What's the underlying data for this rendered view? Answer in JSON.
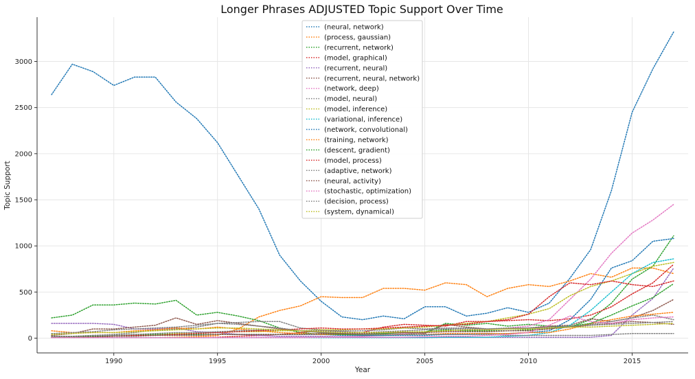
{
  "chart_data": {
    "type": "line",
    "title": "Longer Phrases ADJUSTED Topic Support Over Time",
    "xlabel": "Year",
    "ylabel": "Topic Support",
    "xlim": [
      1986.3,
      1990.0,
      2017.7
    ],
    "ylim": [
      -160,
      3480
    ],
    "xticks": [
      1990,
      1995,
      2000,
      2005,
      2010,
      2015
    ],
    "yticks": [
      0,
      500,
      1000,
      1500,
      2000,
      2500,
      3000
    ],
    "grid": true,
    "legend_position": "top-center",
    "line_style": "dotted",
    "x": [
      1987,
      1988,
      1989,
      1990,
      1991,
      1992,
      1993,
      1994,
      1995,
      1996,
      1997,
      1998,
      1999,
      2000,
      2001,
      2002,
      2003,
      2004,
      2005,
      2006,
      2007,
      2008,
      2009,
      2010,
      2011,
      2012,
      2013,
      2014,
      2015,
      2016,
      2017
    ],
    "series": [
      {
        "name": "(neural, network)",
        "color": "#1f77b4",
        "values": [
          2640,
          2970,
          2890,
          2740,
          2830,
          2830,
          2560,
          2380,
          2120,
          1760,
          1400,
          900,
          620,
          400,
          230,
          200,
          240,
          210,
          340,
          340,
          240,
          270,
          330,
          280,
          380,
          650,
          960,
          1600,
          2450,
          2920,
          3320
        ]
      },
      {
        "name": "(process, gaussian)",
        "color": "#ff7f0e",
        "values": [
          5,
          5,
          5,
          5,
          5,
          5,
          10,
          15,
          30,
          100,
          230,
          300,
          350,
          450,
          440,
          440,
          540,
          540,
          520,
          600,
          580,
          450,
          540,
          580,
          560,
          620,
          700,
          660,
          760,
          760,
          700
        ]
      },
      {
        "name": "(recurrent, network)",
        "color": "#2ca02c",
        "values": [
          220,
          250,
          360,
          360,
          380,
          370,
          410,
          250,
          280,
          240,
          190,
          110,
          60,
          40,
          40,
          30,
          30,
          40,
          60,
          160,
          140,
          160,
          130,
          150,
          130,
          120,
          200,
          380,
          640,
          780,
          1110
        ]
      },
      {
        "name": "(model, graphical)",
        "color": "#d62728",
        "values": [
          5,
          5,
          5,
          5,
          5,
          5,
          5,
          5,
          10,
          20,
          30,
          40,
          60,
          80,
          70,
          60,
          120,
          150,
          140,
          130,
          180,
          180,
          190,
          200,
          190,
          210,
          250,
          340,
          480,
          600,
          800
        ]
      },
      {
        "name": "(recurrent, neural)",
        "color": "#9467bd",
        "values": [
          160,
          160,
          160,
          150,
          100,
          100,
          110,
          70,
          60,
          40,
          30,
          20,
          20,
          20,
          15,
          10,
          10,
          10,
          10,
          10,
          10,
          10,
          10,
          10,
          10,
          10,
          10,
          30,
          250,
          430,
          760
        ]
      },
      {
        "name": "(recurrent, neural, network)",
        "color": "#8c564b",
        "values": [
          30,
          50,
          100,
          100,
          120,
          140,
          220,
          150,
          190,
          160,
          130,
          100,
          80,
          60,
          50,
          40,
          50,
          60,
          50,
          150,
          120,
          100,
          100,
          110,
          130,
          140,
          210,
          180,
          220,
          300,
          420
        ]
      },
      {
        "name": "(network, deep)",
        "color": "#e377c2",
        "values": [
          5,
          5,
          5,
          5,
          5,
          5,
          5,
          5,
          5,
          5,
          10,
          10,
          10,
          10,
          15,
          20,
          30,
          50,
          60,
          70,
          80,
          90,
          110,
          130,
          200,
          420,
          640,
          920,
          1140,
          1280,
          1450
        ]
      },
      {
        "name": "(model, neural)",
        "color": "#7f7f7f",
        "values": [
          20,
          20,
          30,
          40,
          60,
          90,
          100,
          120,
          160,
          170,
          180,
          180,
          110,
          90,
          80,
          80,
          90,
          110,
          100,
          110,
          110,
          100,
          100,
          110,
          110,
          120,
          150,
          180,
          220,
          250,
          200
        ]
      },
      {
        "name": "(model, inference)",
        "color": "#bcbd22",
        "values": [
          10,
          10,
          15,
          20,
          30,
          40,
          50,
          60,
          60,
          70,
          70,
          80,
          80,
          90,
          90,
          100,
          100,
          110,
          120,
          140,
          160,
          180,
          220,
          260,
          320,
          460,
          560,
          620,
          700,
          780,
          820
        ]
      },
      {
        "name": "(variational, inference)",
        "color": "#17becf",
        "values": [
          5,
          5,
          5,
          5,
          5,
          5,
          5,
          5,
          5,
          5,
          5,
          5,
          5,
          5,
          5,
          5,
          5,
          5,
          5,
          10,
          10,
          10,
          20,
          30,
          60,
          140,
          300,
          500,
          700,
          820,
          860
        ]
      },
      {
        "name": "(network, convolutional)",
        "color": "#1f77b4",
        "values": [
          10,
          15,
          20,
          20,
          25,
          30,
          40,
          40,
          40,
          40,
          40,
          40,
          40,
          40,
          30,
          30,
          30,
          30,
          30,
          40,
          40,
          50,
          50,
          60,
          80,
          200,
          420,
          760,
          840,
          1050,
          1080
        ]
      },
      {
        "name": "(training, network)",
        "color": "#ff7f0e",
        "values": [
          80,
          60,
          60,
          60,
          80,
          90,
          110,
          100,
          120,
          100,
          80,
          60,
          50,
          40,
          40,
          40,
          40,
          40,
          40,
          50,
          50,
          50,
          50,
          60,
          60,
          100,
          160,
          200,
          240,
          260,
          280
        ]
      },
      {
        "name": "(descent, gradient)",
        "color": "#2ca02c",
        "values": [
          20,
          20,
          20,
          30,
          40,
          40,
          40,
          40,
          40,
          40,
          40,
          40,
          40,
          50,
          40,
          40,
          50,
          60,
          70,
          90,
          80,
          80,
          80,
          90,
          100,
          130,
          160,
          250,
          350,
          440,
          590
        ]
      },
      {
        "name": "(model, process)",
        "color": "#d62728",
        "values": [
          10,
          10,
          10,
          20,
          30,
          30,
          40,
          50,
          60,
          70,
          80,
          90,
          100,
          110,
          100,
          100,
          110,
          120,
          130,
          140,
          150,
          180,
          200,
          260,
          450,
          600,
          580,
          620,
          580,
          560,
          620
        ]
      },
      {
        "name": "(adaptive, network)",
        "color": "#7f7f7f",
        "values": [
          50,
          60,
          70,
          90,
          100,
          110,
          120,
          140,
          160,
          150,
          130,
          110,
          80,
          60,
          50,
          40,
          40,
          40,
          40,
          40,
          40,
          40,
          30,
          30,
          30,
          30,
          30,
          40,
          50,
          50,
          50
        ]
      },
      {
        "name": "(neural, activity)",
        "color": "#8c564b",
        "values": [
          10,
          10,
          15,
          20,
          20,
          30,
          30,
          30,
          40,
          40,
          40,
          40,
          40,
          50,
          50,
          50,
          60,
          60,
          60,
          70,
          70,
          70,
          80,
          80,
          100,
          120,
          140,
          160,
          180,
          170,
          150
        ]
      },
      {
        "name": "(stochastic, optimization)",
        "color": "#e377c2",
        "values": [
          5,
          5,
          5,
          5,
          5,
          5,
          5,
          5,
          5,
          5,
          5,
          5,
          5,
          10,
          10,
          10,
          10,
          10,
          15,
          20,
          20,
          30,
          40,
          60,
          140,
          240,
          180,
          160,
          200,
          220,
          230
        ]
      },
      {
        "name": "(decision, process)",
        "color": "#7f7f7f",
        "values": [
          20,
          20,
          30,
          30,
          40,
          50,
          60,
          60,
          70,
          80,
          90,
          90,
          80,
          80,
          70,
          60,
          70,
          80,
          90,
          100,
          100,
          100,
          110,
          110,
          120,
          130,
          140,
          150,
          160,
          170,
          180
        ]
      },
      {
        "name": "(system, dynamical)",
        "color": "#bcbd22",
        "values": [
          40,
          50,
          60,
          60,
          70,
          80,
          90,
          100,
          110,
          110,
          100,
          90,
          80,
          70,
          60,
          60,
          60,
          70,
          70,
          80,
          90,
          90,
          100,
          100,
          110,
          120,
          120,
          130,
          140,
          150,
          160
        ]
      }
    ]
  }
}
